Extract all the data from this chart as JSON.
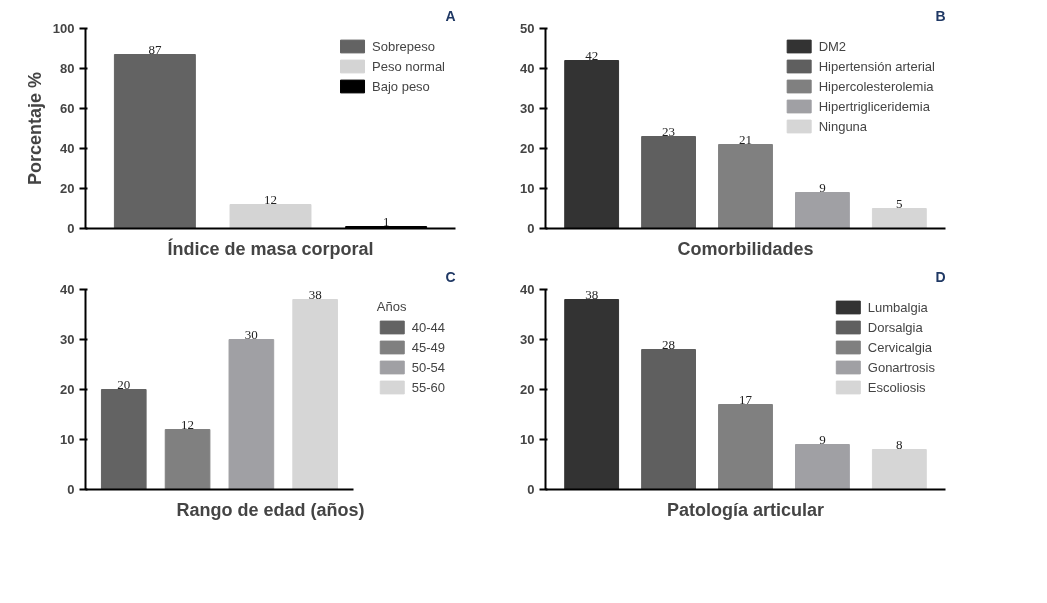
{
  "chart_data": [
    {
      "type": "bar",
      "xlabel": "Índice de masa corporal",
      "ylabel": "Porcentaje %",
      "annotations": [
        "A"
      ],
      "categories": [
        null,
        null,
        null
      ],
      "series": [
        {
          "name": "Sobrepeso",
          "color": "#636363",
          "values": [
            87,
            null,
            null
          ]
        },
        {
          "name": "Peso normal",
          "color": "#d4d4d4",
          "values": [
            null,
            12,
            null
          ]
        },
        {
          "name": "Bajo peso",
          "color": "#000000",
          "values": [
            null,
            null,
            1
          ]
        }
      ],
      "ylim": [
        0,
        100
      ],
      "yticks": [
        0,
        20,
        40,
        60,
        80,
        100
      ],
      "tick_labels": "y",
      "data_labels": true,
      "legend": "top right",
      "grid": false
    },
    {
      "type": "bar",
      "xlabel": "Comorbilidades",
      "annotations": [
        "B"
      ],
      "categories": [
        null,
        null,
        null,
        null,
        null
      ],
      "series": [
        {
          "name": "DM2",
          "color": "#333333",
          "values": [
            42,
            null,
            null,
            null,
            null
          ]
        },
        {
          "name": "Hipertensión arterial",
          "color": "#5f5f5f",
          "values": [
            null,
            23,
            null,
            null,
            null
          ]
        },
        {
          "name": "Hipercolesterolemia",
          "color": "#808080",
          "values": [
            null,
            null,
            21,
            null,
            null
          ]
        },
        {
          "name": "Hipertrigliceridemia",
          "color": "#a0a0a4",
          "values": [
            null,
            null,
            null,
            9,
            null
          ]
        },
        {
          "name": "Ninguna",
          "color": "#d6d6d6",
          "values": [
            null,
            null,
            null,
            null,
            5
          ]
        }
      ],
      "ylim": [
        0,
        50
      ],
      "yticks": [
        0,
        10,
        20,
        30,
        40,
        50
      ],
      "tick_labels": "y",
      "data_labels": true,
      "legend": "top right",
      "grid": false
    },
    {
      "type": "bar",
      "xlabel": "Rango de edad (años)",
      "legend_title": "Años",
      "annotations": [
        "C"
      ],
      "categories": [
        null,
        null,
        null,
        null
      ],
      "series": [
        {
          "name": "40-44",
          "color": "#636363",
          "values": [
            20,
            null,
            null,
            null
          ]
        },
        {
          "name": "45-49",
          "color": "#808080",
          "values": [
            null,
            12,
            null,
            null
          ]
        },
        {
          "name": "50-54",
          "color": "#a0a0a4",
          "values": [
            null,
            null,
            30,
            null
          ]
        },
        {
          "name": "55-60",
          "color": "#d6d6d6",
          "values": [
            null,
            null,
            null,
            38
          ]
        }
      ],
      "ylim": [
        0,
        40
      ],
      "yticks": [
        0,
        10,
        20,
        30,
        40
      ],
      "tick_labels": "y",
      "data_labels": true,
      "legend": "right",
      "grid": false
    },
    {
      "type": "bar",
      "xlabel": "Patología articular",
      "annotations": [
        "D"
      ],
      "categories": [
        null,
        null,
        null,
        null,
        null
      ],
      "series": [
        {
          "name": "Lumbalgia",
          "color": "#333333",
          "values": [
            38,
            null,
            null,
            null,
            null
          ]
        },
        {
          "name": "Dorsalgia",
          "color": "#5f5f5f",
          "values": [
            null,
            28,
            null,
            null,
            null
          ]
        },
        {
          "name": "Cervicalgia",
          "color": "#808080",
          "values": [
            null,
            null,
            17,
            null,
            null
          ]
        },
        {
          "name": "Gonartrosis",
          "color": "#a0a0a4",
          "values": [
            null,
            null,
            null,
            9,
            null
          ]
        },
        {
          "name": "Escoliosis",
          "color": "#d6d6d6",
          "values": [
            null,
            null,
            null,
            null,
            8
          ]
        }
      ],
      "ylim": [
        0,
        40
      ],
      "yticks": [
        0,
        10,
        20,
        30,
        40
      ],
      "tick_labels": "y",
      "data_labels": true,
      "legend": "top right",
      "grid": false
    }
  ]
}
